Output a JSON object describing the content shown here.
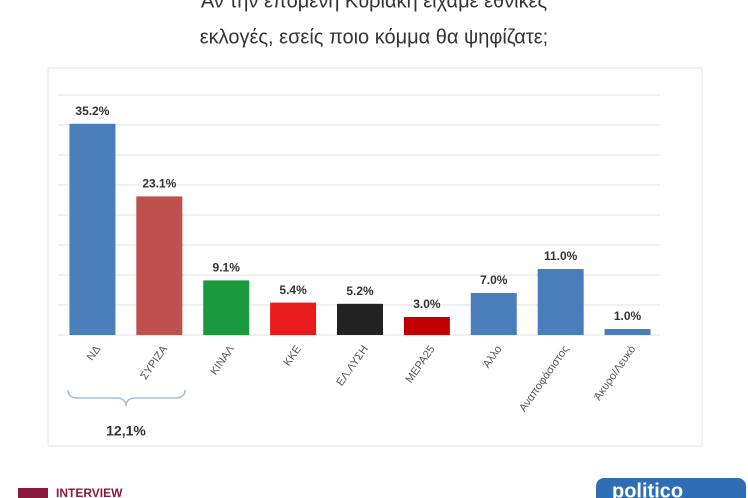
{
  "chart_data": {
    "type": "bar",
    "title": [
      "Αν την επόμενη Κυριακή είχαμε εθνικές",
      "εκλογές, εσείς ποιο κόμμα θα ψηφίζατε;"
    ],
    "categories": [
      "ΝΔ",
      "ΣΥΡΙΖΑ",
      "ΚΙΝΑΛ",
      "ΚΚΕ",
      "ΕΛ.ΛΥΣΗ",
      "ΜΕΡΑ25",
      "Άλλο",
      "Αναποφάσιστος",
      "Άκυρο/Λευκό"
    ],
    "values": [
      35.2,
      23.1,
      9.1,
      5.4,
      5.2,
      3.0,
      7.0,
      11.0,
      1.0
    ],
    "value_labels": [
      "35.2%",
      "23.1%",
      "9.1%",
      "5.4%",
      "5.2%",
      "3.0%",
      "7.0%",
      "11.0%",
      "1.0%"
    ],
    "colors": [
      "#4a7ebb",
      "#c0504d",
      "#1a9a3c",
      "#e81c1c",
      "#222222",
      "#c00000",
      "#4a7ebb",
      "#4a7ebb",
      "#4a7ebb"
    ],
    "ylim": [
      0,
      40
    ],
    "yticks": [
      0,
      5,
      10,
      15,
      20,
      25,
      30,
      35,
      40
    ],
    "grid": true,
    "annotation": "12,1%"
  },
  "footer": {
    "left_logo": "INTERVIEW",
    "right_logo": "politico"
  }
}
